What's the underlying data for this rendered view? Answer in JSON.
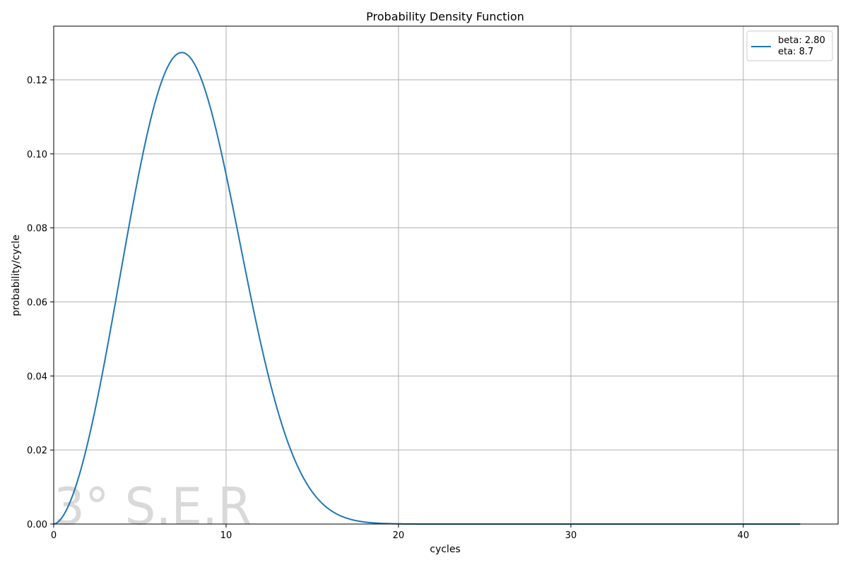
{
  "chart_data": {
    "type": "line",
    "title": "Probability Density Function",
    "xlabel": "cycles",
    "ylabel": "probability/cycle",
    "xlim": [
      0,
      45.5
    ],
    "ylim": [
      0,
      0.1345
    ],
    "xticks": [
      0,
      10,
      20,
      30,
      40
    ],
    "yticks": [
      0.0,
      0.02,
      0.04,
      0.06,
      0.08,
      0.1,
      0.12
    ],
    "ytick_labels": [
      "0.00",
      "0.02",
      "0.04",
      "0.06",
      "0.08",
      "0.10",
      "0.12"
    ],
    "grid": true,
    "legend_position": "top-right",
    "legend_lines": [
      "beta: 2.80",
      "eta: 8.7"
    ],
    "watermark": "3° S.E.R",
    "series": [
      {
        "color": "#1f77b4",
        "distribution": "weibull",
        "beta": 2.8,
        "eta": 8.7,
        "x_range": [
          0,
          43.3
        ]
      }
    ]
  }
}
